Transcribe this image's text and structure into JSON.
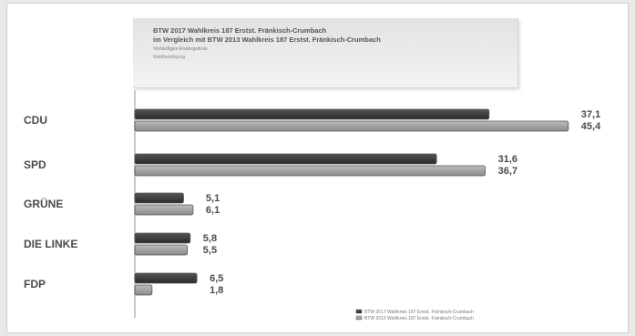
{
  "header": {
    "title_line1": "BTW 2017 Wahlkreis 187 Erstst. Fränkisch-Crumbach",
    "title_line2": "im Vergleich mit BTW 2013 Wahlkreis 187 Erstst. Fränkisch-Crumbach",
    "title_line3": "Vorläufiges Endergebnis",
    "title_line4": "Wahlbeteiligung"
  },
  "colors": {
    "series_2017": "#2b2b2b",
    "series_2013": "#8a8a8a",
    "outline": "#555555"
  },
  "chart_data": {
    "type": "bar",
    "orientation": "horizontal",
    "categories": [
      "CDU",
      "SPD",
      "GRÜNE",
      "DIE LINKE",
      "FDP"
    ],
    "series": [
      {
        "name": "BTW 2017 Wahlkreis 187 Erstst. Fränkisch-Crumbach",
        "values": [
          37.1,
          31.6,
          5.1,
          5.8,
          6.5
        ],
        "labels": [
          "37,1",
          "31,6",
          "5,1",
          "5,8",
          "6,5"
        ]
      },
      {
        "name": "BTW 2013 Wahlkreis 187 Erstst. Fränkisch-Crumbach",
        "values": [
          45.4,
          36.7,
          6.1,
          5.5,
          1.8
        ],
        "labels": [
          "45,4",
          "36,7",
          "6,1",
          "5,5",
          "1,8"
        ]
      }
    ],
    "xlim": [
      0,
      50
    ],
    "grid": false,
    "legend_position": "bottom-right"
  }
}
